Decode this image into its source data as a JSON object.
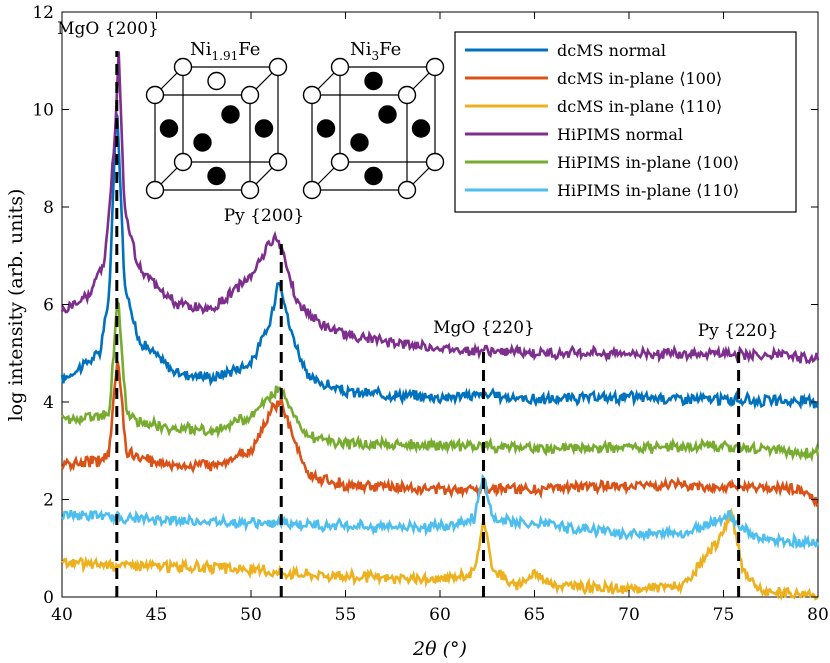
{
  "chart_data": {
    "type": "line",
    "xlabel": "2θ (°)",
    "ylabel": "log intensity (arb. units)",
    "xlim": [
      40,
      80
    ],
    "ylim": [
      0,
      12
    ],
    "xticks": [
      "40",
      "45",
      "50",
      "55",
      "60",
      "65",
      "70",
      "75",
      "80"
    ],
    "yticks": [
      "0",
      "2",
      "4",
      "6",
      "8",
      "10",
      "12"
    ],
    "grid": false,
    "legend_position": "top-right",
    "series": [
      {
        "name": "dcMS normal",
        "color": "#0072BD",
        "baseline": 4.1,
        "x": [
          40,
          42,
          42.5,
          42.9,
          43.3,
          44,
          46,
          48,
          50,
          51,
          51.5,
          52,
          53,
          55,
          60,
          62.3,
          65,
          70,
          75,
          80
        ],
        "y": [
          4.45,
          5.0,
          6.2,
          10.2,
          6.5,
          5.3,
          4.6,
          4.5,
          4.8,
          5.6,
          6.6,
          5.6,
          4.5,
          4.2,
          4.1,
          4.15,
          4.05,
          4.1,
          4.05,
          4.0
        ]
      },
      {
        "name": "dcMS in-plane ⟨100⟩",
        "color": "#D95319",
        "baseline": 2.25,
        "x": [
          40,
          42,
          42.5,
          42.95,
          43.4,
          44,
          46,
          48,
          50,
          51.2,
          51.6,
          52.2,
          53,
          55,
          60,
          62.3,
          65,
          70,
          75,
          79,
          80
        ],
        "y": [
          2.7,
          2.8,
          3.0,
          4.95,
          3.0,
          2.85,
          2.7,
          2.7,
          3.0,
          3.9,
          4.0,
          3.3,
          2.5,
          2.3,
          2.2,
          2.25,
          2.2,
          2.3,
          2.25,
          2.2,
          1.95
        ]
      },
      {
        "name": "dcMS in-plane ⟨110⟩",
        "color": "#EDB120",
        "baseline": 0.35,
        "x": [
          40,
          44,
          48,
          52,
          56,
          60,
          61.8,
          62.3,
          62.8,
          64,
          65,
          66,
          70,
          73,
          74.8,
          75.4,
          76,
          77,
          80
        ],
        "y": [
          0.7,
          0.65,
          0.6,
          0.5,
          0.4,
          0.35,
          0.5,
          1.55,
          0.6,
          0.2,
          0.5,
          0.25,
          0.15,
          0.25,
          1.2,
          1.75,
          0.6,
          0.1,
          0.05
        ]
      },
      {
        "name": "HiPIMS normal",
        "color": "#7E2F8E",
        "baseline": 5.0,
        "x": [
          40,
          41.5,
          42.3,
          42.8,
          43.0,
          43.3,
          44,
          46,
          48,
          50,
          51.2,
          51.6,
          52.5,
          54,
          56,
          60,
          65,
          70,
          75,
          80
        ],
        "y": [
          5.85,
          6.2,
          7.0,
          9.5,
          11.2,
          8.0,
          6.8,
          6.0,
          5.9,
          6.6,
          7.4,
          7.2,
          6.0,
          5.5,
          5.3,
          5.1,
          5.0,
          5.0,
          5.0,
          4.9
        ]
      },
      {
        "name": "HiPIMS in-plane ⟨100⟩",
        "color": "#77AC30",
        "baseline": 3.1,
        "x": [
          40,
          42,
          42.5,
          42.95,
          43.4,
          44,
          46,
          48,
          50,
          51.2,
          51.6,
          52.2,
          53,
          55,
          60,
          62.3,
          65,
          70,
          75,
          80
        ],
        "y": [
          3.65,
          3.7,
          3.8,
          6.2,
          3.8,
          3.6,
          3.45,
          3.4,
          3.7,
          4.2,
          4.3,
          3.8,
          3.3,
          3.15,
          3.1,
          3.1,
          3.05,
          3.05,
          3.1,
          2.95
        ]
      },
      {
        "name": "HiPIMS in-plane ⟨110⟩",
        "color": "#4DBEEE",
        "baseline": 1.35,
        "x": [
          40,
          44,
          48,
          52,
          56,
          60,
          61.8,
          62.3,
          62.8,
          65,
          70,
          73,
          74.8,
          75.3,
          76,
          77,
          80
        ],
        "y": [
          1.7,
          1.6,
          1.55,
          1.5,
          1.45,
          1.45,
          1.6,
          2.5,
          1.6,
          1.5,
          1.3,
          1.3,
          1.6,
          1.7,
          1.4,
          1.2,
          1.1
        ]
      }
    ],
    "reference_lines": [
      {
        "x": 42.9,
        "label": "MgO {200}"
      },
      {
        "x": 51.6,
        "label": "Py {200}"
      },
      {
        "x": 62.3,
        "label": "MgO {220}"
      },
      {
        "x": 75.8,
        "label": "Py {220}"
      }
    ]
  },
  "inset": {
    "left_label_main": "Ni",
    "left_label_sub": "1.91",
    "left_label_tail": "Fe",
    "right_label_main": "Ni",
    "right_label_sub": "3",
    "right_label_tail": "Fe"
  }
}
